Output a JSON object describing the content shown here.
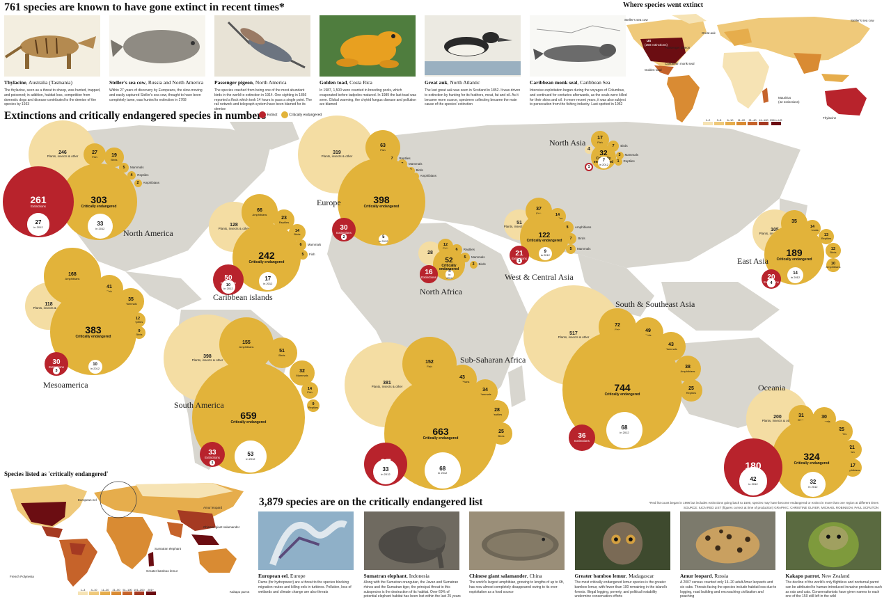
{
  "top": {
    "headline": "761 species are known to have gone extinct in recent times*",
    "extinct_species": [
      {
        "name": "Thylacine",
        "place": ", Australia (Tasmania)",
        "desc": "The thylacine, seen as a threat to sheep, was hunted, trapped, and poisoned; in addition, habitat loss, competition from domestic dogs and disease contributed to the demise of the species by 1933"
      },
      {
        "name": "Steller's sea cow",
        "place": ", Russia and North America",
        "desc": "Within 27 years of discovery by Europeans, the slow-moving and easily captured Steller's sea cow, thought to have been completely tame, was hunted to extinction in 1768"
      },
      {
        "name": "Passenger pigeon",
        "place": ", North America",
        "desc": "The species crashed from being one of the most abundant birds in the world to extinction in 1914. One sighting in 1866 reported a flock which took 14 hours to pass a single point. The rail network and telegraph system have been blamed for its demise"
      },
      {
        "name": "Golden toad",
        "place": ", Costa Rica",
        "desc": "In 1987, 1,500 were counted in breeding pools, which evaporated before tadpoles matured. In 1989 the last toad was seen. Global warming, the chytrid fungus disease and pollution are blamed"
      },
      {
        "name": "Great auk",
        "place": ", North Atlantic",
        "desc": "The last great auk was seen in Scotland in 1852. It was driven to extinction by hunting for its feathers, meat, fat and oil. As it became more scarce, specimen collecting became the main cause of the species' extinction"
      },
      {
        "name": "Caribbean monk seal",
        "place": ", Caribbean Sea",
        "desc": "Intensive exploitation began during the voyages of Columbus, and continued for centuries afterwards, as the seals were killed for their skins and oil. In more recent years, it was also subject to persecution from the fishing industry. Last spotted in 1952"
      }
    ]
  },
  "where_extinct": {
    "title": "Where species went extinct",
    "labels": {
      "stellers_left": "Steller's sea cow",
      "stellers_right": "Steller's sea cow",
      "great_auk": "Great auk",
      "us": "US",
      "us_count": "(258 extinctions)",
      "passenger_pigeon": "Passenger pigeon",
      "caribbean_monk_seal": "Caribbean monk seal",
      "golden_toad": "Golden toad",
      "mauritius": "Mauritius",
      "mauritius_count": "(42 extinctions)",
      "thylacine": "Thylacine"
    },
    "key": [
      "1–2",
      "3–5",
      "6–10",
      "11–20",
      "21–40",
      "41–100",
      "258 in US"
    ],
    "key_colors": [
      "#f6e3b4",
      "#efc97a",
      "#e6ad4c",
      "#d98b33",
      "#c6632a",
      "#a53a22",
      "#6b0d12"
    ]
  },
  "numbers": {
    "title": "Extinctions and critically endangered species in numbers",
    "legend_extinct": "Extinct",
    "legend_endangered": "Critically endangered",
    "colors": {
      "extinct": "#b8232c",
      "endangered": "#e2b33a",
      "plants": "#f4dda3",
      "map": "#d8d6cf"
    },
    "label_extinctions": "Extinctions",
    "label_critically": "Critically endangered",
    "label_in2012": "in 2012",
    "label_plants": "Plants, insects & other",
    "label_1996": "1996–2012",
    "regions": [
      {
        "name": "North America",
        "extinctions": "261",
        "ext_2012": "27",
        "endangered": "303",
        "end_2012": "33",
        "plants": "246",
        "small": [
          {
            "n": "27",
            "k": "Fish"
          },
          {
            "n": "19",
            "k": "Birds"
          },
          {
            "n": "5",
            "k": "Mammals"
          },
          {
            "n": "4",
            "k": "Reptiles"
          },
          {
            "n": "2",
            "k": "Amphibians"
          }
        ]
      },
      {
        "name": "Mesoamerica",
        "extinctions": "30",
        "ext_2012": "3",
        "endangered": "383",
        "end_2012": "10",
        "plants": "118",
        "small": [
          {
            "n": "168",
            "k": "Amphibians"
          },
          {
            "n": "41",
            "k": "Fish"
          },
          {
            "n": "35",
            "k": "Mammals"
          },
          {
            "n": "12",
            "k": "Reptiles"
          },
          {
            "n": "9",
            "k": "Birds"
          }
        ]
      },
      {
        "name": "Caribbean islands",
        "extinctions": "50",
        "ext_2012": "10",
        "endangered": "242",
        "end_2012": "17",
        "plants": "128",
        "small": [
          {
            "n": "66",
            "k": "Amphibians"
          },
          {
            "n": "23",
            "k": "Reptiles"
          },
          {
            "n": "14",
            "k": "Birds"
          },
          {
            "n": "6",
            "k": "Mammals"
          },
          {
            "n": "5",
            "k": "Fish"
          }
        ]
      },
      {
        "name": "South America",
        "extinctions": "33",
        "ext_2012": "1",
        "endangered": "659",
        "end_2012": "53",
        "plants": "398",
        "small": [
          {
            "n": "155",
            "k": "Amphibians"
          },
          {
            "n": "51",
            "k": "Birds"
          },
          {
            "n": "32",
            "k": "Mammals"
          },
          {
            "n": "14",
            "k": "Fish"
          },
          {
            "n": "9",
            "k": "Reptiles"
          }
        ]
      },
      {
        "name": "Europe",
        "extinctions": "30",
        "ext_2012": "2",
        "endangered": "398",
        "end_2012": "5",
        "plants": "319",
        "small": [
          {
            "n": "63",
            "k": "Fish"
          },
          {
            "n": "7",
            "k": "Reptiles"
          },
          {
            "n": "5",
            "k": "Mammals"
          },
          {
            "n": "2",
            "k": "Birds"
          },
          {
            "n": "2",
            "k": "Amphibians"
          }
        ]
      },
      {
        "name": "North Africa",
        "extinctions": "16",
        "ext_2012": "",
        "endangered": "52",
        "end_2012": "4",
        "plants": "28",
        "small": [
          {
            "n": "12",
            "k": "Fish"
          },
          {
            "n": "6",
            "k": "Reptiles"
          },
          {
            "n": "5",
            "k": "Mammals"
          },
          {
            "n": "3",
            "k": "Birds"
          }
        ]
      },
      {
        "name": "Sub-Saharan Africa",
        "extinctions": "97",
        "ext_2012": "33",
        "endangered": "663",
        "end_2012": "68",
        "plants": "381",
        "small": [
          {
            "n": "152",
            "k": "Fish"
          },
          {
            "n": "43",
            "k": "Amphibians"
          },
          {
            "n": "34",
            "k": "Mammals"
          },
          {
            "n": "28",
            "k": "Reptiles"
          },
          {
            "n": "25",
            "k": "Birds"
          }
        ]
      },
      {
        "name": "West & Central Asia",
        "extinctions": "21",
        "ext_2012": "1",
        "endangered": "122",
        "end_2012": "9",
        "plants": "51",
        "small": [
          {
            "n": "37",
            "k": "Fish"
          },
          {
            "n": "14",
            "k": "Reptiles"
          },
          {
            "n": "8",
            "k": "Amphibians"
          },
          {
            "n": "7",
            "k": "Birds"
          },
          {
            "n": "5",
            "k": "Mammals"
          }
        ]
      },
      {
        "name": "North Asia",
        "extinctions": "2",
        "ext_2012": "1",
        "endangered": "32",
        "end_2012": "7",
        "plants": "4",
        "small": [
          {
            "n": "17",
            "k": "Fish"
          },
          {
            "n": "7",
            "k": "Birds"
          },
          {
            "n": "3",
            "k": "Mammals"
          },
          {
            "n": "1",
            "k": "Reptiles"
          }
        ]
      },
      {
        "name": "East Asia",
        "extinctions": "20",
        "ext_2012": "4",
        "endangered": "189",
        "end_2012": "14",
        "plants": "105",
        "small": [
          {
            "n": "35",
            "k": "Fish"
          },
          {
            "n": "14",
            "k": "Mammals"
          },
          {
            "n": "13",
            "k": "Reptiles"
          },
          {
            "n": "12",
            "k": "Birds"
          },
          {
            "n": "10",
            "k": "Amphibians"
          }
        ]
      },
      {
        "name": "South & Southeast Asia",
        "extinctions": "36",
        "ext_2012": "",
        "endangered": "744",
        "end_2012": "68",
        "plants": "517",
        "small": [
          {
            "n": "72",
            "k": "Fish"
          },
          {
            "n": "49",
            "k": "Birds"
          },
          {
            "n": "43",
            "k": "Mammals"
          },
          {
            "n": "38",
            "k": "Amphibians"
          },
          {
            "n": "25",
            "k": "Reptiles"
          }
        ]
      },
      {
        "name": "Oceania",
        "extinctions": "180",
        "ext_2012": "42",
        "endangered": "324",
        "end_2012": "32",
        "plants": "200",
        "small": [
          {
            "n": "31",
            "k": "Birds"
          },
          {
            "n": "30",
            "k": "Mammals"
          },
          {
            "n": "25",
            "k": "Reptiles"
          },
          {
            "n": "21",
            "k": "Fish"
          },
          {
            "n": "17",
            "k": "Amphibians"
          }
        ]
      }
    ]
  },
  "listed": {
    "title": "Species listed as 'critically endangered'",
    "labels": {
      "european_eel": "European eel",
      "amur_leopard": "Amur leopard",
      "salamander": "Chinese giant salamander",
      "elephant": "Sumatran elephant",
      "lemur": "Greater bamboo lemur",
      "polynesia": "French Polynesia",
      "kakapo": "Kakapo parrot"
    },
    "key": [
      "1–3",
      "4–10",
      "11–20",
      "21–50",
      "51–100",
      "101–200",
      "201+"
    ],
    "key_colors": [
      "#f6e3b4",
      "#efc97a",
      "#e6ad4c",
      "#d98b33",
      "#c6632a",
      "#a53a22",
      "#6b0d12"
    ]
  },
  "critical": {
    "title": "3,879 species are on the critically endangered list",
    "footnote": "*Red list count began in 1996 but includes extinctions going back to 1500, species may have become endangered or extinct in more than one region at different times",
    "source": "SOURCE: IUCN RED LIST (figures correct at time of production) GRAPHIC: CHRISTINE OLIVER, MICHAEL ROBINSON, PAUL SCRUTON",
    "species": [
      {
        "name": "European eel",
        "place": ", Europe",
        "desc": "Dams (for hydropower) are a threat to the species blocking migration routes and killing eels in turbines. Pollution, loss of wetlands and climate change are also threats"
      },
      {
        "name": "Sumatran elephant",
        "place": ", Indonesia",
        "desc": "Along with the Sumatran orangutan, the Javan and Sumatran rhinos and the Sumatran tiger, the principal threat to this subspecies is the destruction of its habitat. Over 69% of potential elephant habitat has been lost within the last 25 years"
      },
      {
        "name": "Chinese giant salamander",
        "place": ", China",
        "desc": "The world's largest amphibian, growing to lengths of up to 6ft, has now almost completely disappeared owing to its over-exploitation as a food source"
      },
      {
        "name": "Greater bamboo lemur",
        "place": ", Madagascar",
        "desc": "The most critically endangered lemur species is the greater bamboo lemur, with fewer than 100 remaining in the island's forests. Illegal logging, poverty, and political instability undermine conservation efforts"
      },
      {
        "name": "Amur leopard",
        "place": ", Russia",
        "desc": "A 2007 census counted only 14–20 adult Amur leopards and six cubs. Threats facing the species include habitat loss due to logging, road building and encroaching civilization and poaching"
      },
      {
        "name": "Kakapo parrot",
        "place": ", New Zealand",
        "desc": "The decline of the world's only flightless and nocturnal parrot can be attributed to human-introduced invasive predators such as rats and cats. Conservationists have given names to each one of the 150 still left in the wild"
      }
    ]
  }
}
